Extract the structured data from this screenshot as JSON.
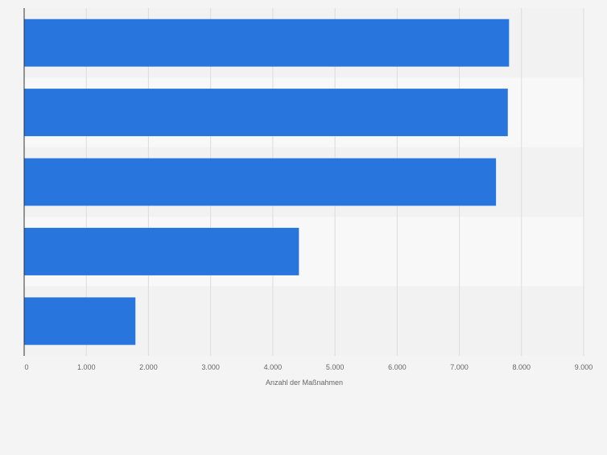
{
  "chart_data": {
    "type": "bar",
    "orientation": "horizontal",
    "categories": [
      "",
      "",
      "",
      "",
      ""
    ],
    "values": [
      7800,
      7780,
      7590,
      4420,
      1790
    ],
    "xlabel": "Anzahl der Maßnahmen",
    "ylabel": "",
    "xlim": [
      0,
      9000
    ],
    "ticks": [
      0,
      1000,
      2000,
      3000,
      4000,
      5000,
      6000,
      7000,
      8000,
      9000
    ],
    "tick_labels": [
      "0",
      "1.000",
      "2.000",
      "3.000",
      "4.000",
      "5.000",
      "6.000",
      "7.000",
      "8.000",
      "9.000"
    ],
    "grid": true,
    "legend": "none",
    "colors": {
      "bar": "#2876dd",
      "band_dark": "#f2f2f2",
      "band_light": "#f8f8f8",
      "grid": "#dcdcdc",
      "axis": "#333333",
      "text": "#666666"
    }
  }
}
